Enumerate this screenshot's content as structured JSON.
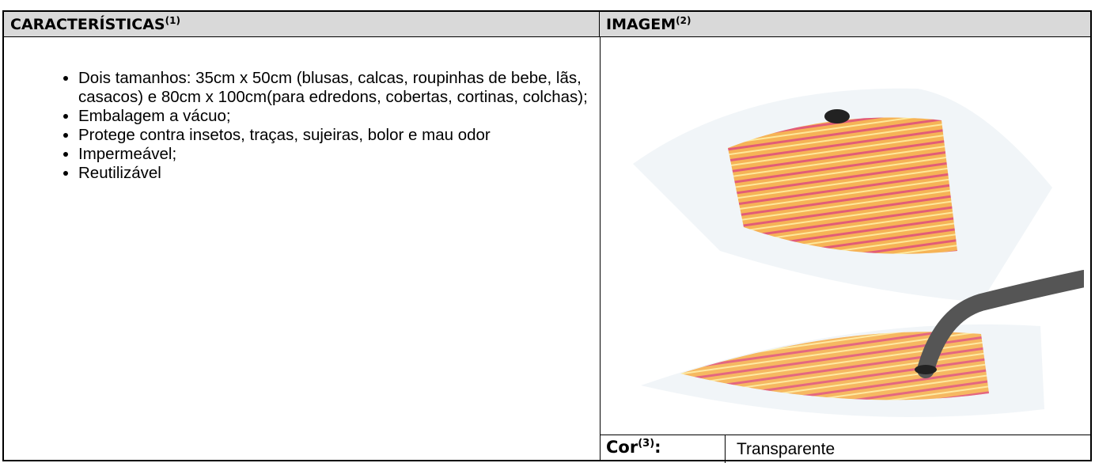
{
  "header": {
    "features": {
      "title": "CARACTERÍSTICAS",
      "note": "(1)"
    },
    "image": {
      "title": "IMAGEM",
      "note": "(2)"
    }
  },
  "features": [
    "Dois tamanhos: 35cm x 50cm (blusas, calcas, roupinhas de bebe, lãs, casacos) e 80cm x 100cm(para edredons, cobertas, cortinas, colchas);",
    "Embalagem a vácuo;",
    "Protege contra insetos, traças, sujeiras, bolor e mau odor",
    "Impermeável;",
    "Reutilizável"
  ],
  "color": {
    "label": "Cor",
    "note": "(3)",
    "suffix": ":",
    "value": "Transparente"
  }
}
